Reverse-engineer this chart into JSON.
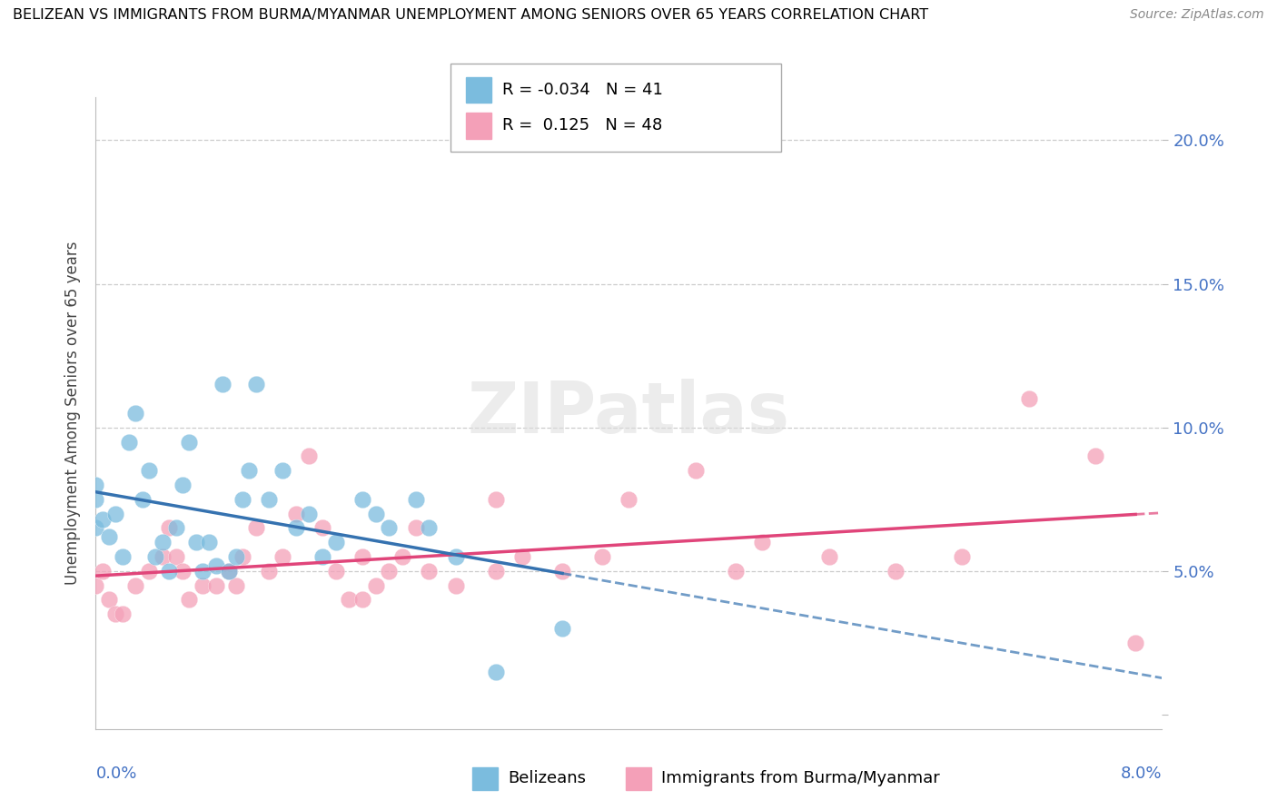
{
  "title": "BELIZEAN VS IMMIGRANTS FROM BURMA/MYANMAR UNEMPLOYMENT AMONG SENIORS OVER 65 YEARS CORRELATION CHART",
  "source": "Source: ZipAtlas.com",
  "ylabel": "Unemployment Among Seniors over 65 years",
  "xmin": 0.0,
  "xmax": 8.0,
  "ymin": -0.5,
  "ymax": 21.5,
  "yticks": [
    0.0,
    5.0,
    10.0,
    15.0,
    20.0
  ],
  "ytick_labels": [
    "",
    "5.0%",
    "10.0%",
    "15.0%",
    "20.0%"
  ],
  "r_belizean": -0.034,
  "n_belizean": 41,
  "r_burma": 0.125,
  "n_burma": 48,
  "color_belizean": "#7BBCDE",
  "color_burma": "#F4A0B8",
  "line_color_belizean": "#3572B0",
  "line_color_burma": "#E0457A",
  "belizean_x": [
    0.0,
    0.0,
    0.0,
    0.05,
    0.1,
    0.15,
    0.2,
    0.25,
    0.3,
    0.35,
    0.4,
    0.45,
    0.5,
    0.55,
    0.6,
    0.65,
    0.7,
    0.75,
    0.8,
    0.85,
    0.9,
    0.95,
    1.0,
    1.05,
    1.1,
    1.15,
    1.2,
    1.3,
    1.4,
    1.5,
    1.6,
    1.7,
    1.8,
    2.0,
    2.1,
    2.2,
    2.4,
    2.5,
    2.7,
    3.0,
    3.5
  ],
  "belizean_y": [
    6.5,
    7.5,
    8.0,
    6.8,
    6.2,
    7.0,
    5.5,
    9.5,
    10.5,
    7.5,
    8.5,
    5.5,
    6.0,
    5.0,
    6.5,
    8.0,
    9.5,
    6.0,
    5.0,
    6.0,
    5.2,
    11.5,
    5.0,
    5.5,
    7.5,
    8.5,
    11.5,
    7.5,
    8.5,
    6.5,
    7.0,
    5.5,
    6.0,
    7.5,
    7.0,
    6.5,
    7.5,
    6.5,
    5.5,
    1.5,
    3.0
  ],
  "burma_x": [
    0.0,
    0.05,
    0.1,
    0.15,
    0.2,
    0.3,
    0.4,
    0.5,
    0.55,
    0.6,
    0.65,
    0.7,
    0.8,
    0.9,
    1.0,
    1.05,
    1.1,
    1.2,
    1.3,
    1.4,
    1.5,
    1.6,
    1.7,
    1.8,
    1.9,
    2.0,
    2.1,
    2.2,
    2.3,
    2.4,
    2.5,
    2.7,
    3.0,
    3.2,
    3.5,
    3.8,
    4.0,
    4.5,
    4.8,
    5.0,
    5.5,
    6.0,
    6.5,
    7.0,
    7.5,
    7.8,
    3.0,
    2.0
  ],
  "burma_y": [
    4.5,
    5.0,
    4.0,
    3.5,
    3.5,
    4.5,
    5.0,
    5.5,
    6.5,
    5.5,
    5.0,
    4.0,
    4.5,
    4.5,
    5.0,
    4.5,
    5.5,
    6.5,
    5.0,
    5.5,
    7.0,
    9.0,
    6.5,
    5.0,
    4.0,
    5.5,
    4.5,
    5.0,
    5.5,
    6.5,
    5.0,
    4.5,
    5.0,
    5.5,
    5.0,
    5.5,
    7.5,
    8.5,
    5.0,
    6.0,
    5.5,
    5.0,
    5.5,
    11.0,
    9.0,
    2.5,
    7.5,
    4.0
  ]
}
